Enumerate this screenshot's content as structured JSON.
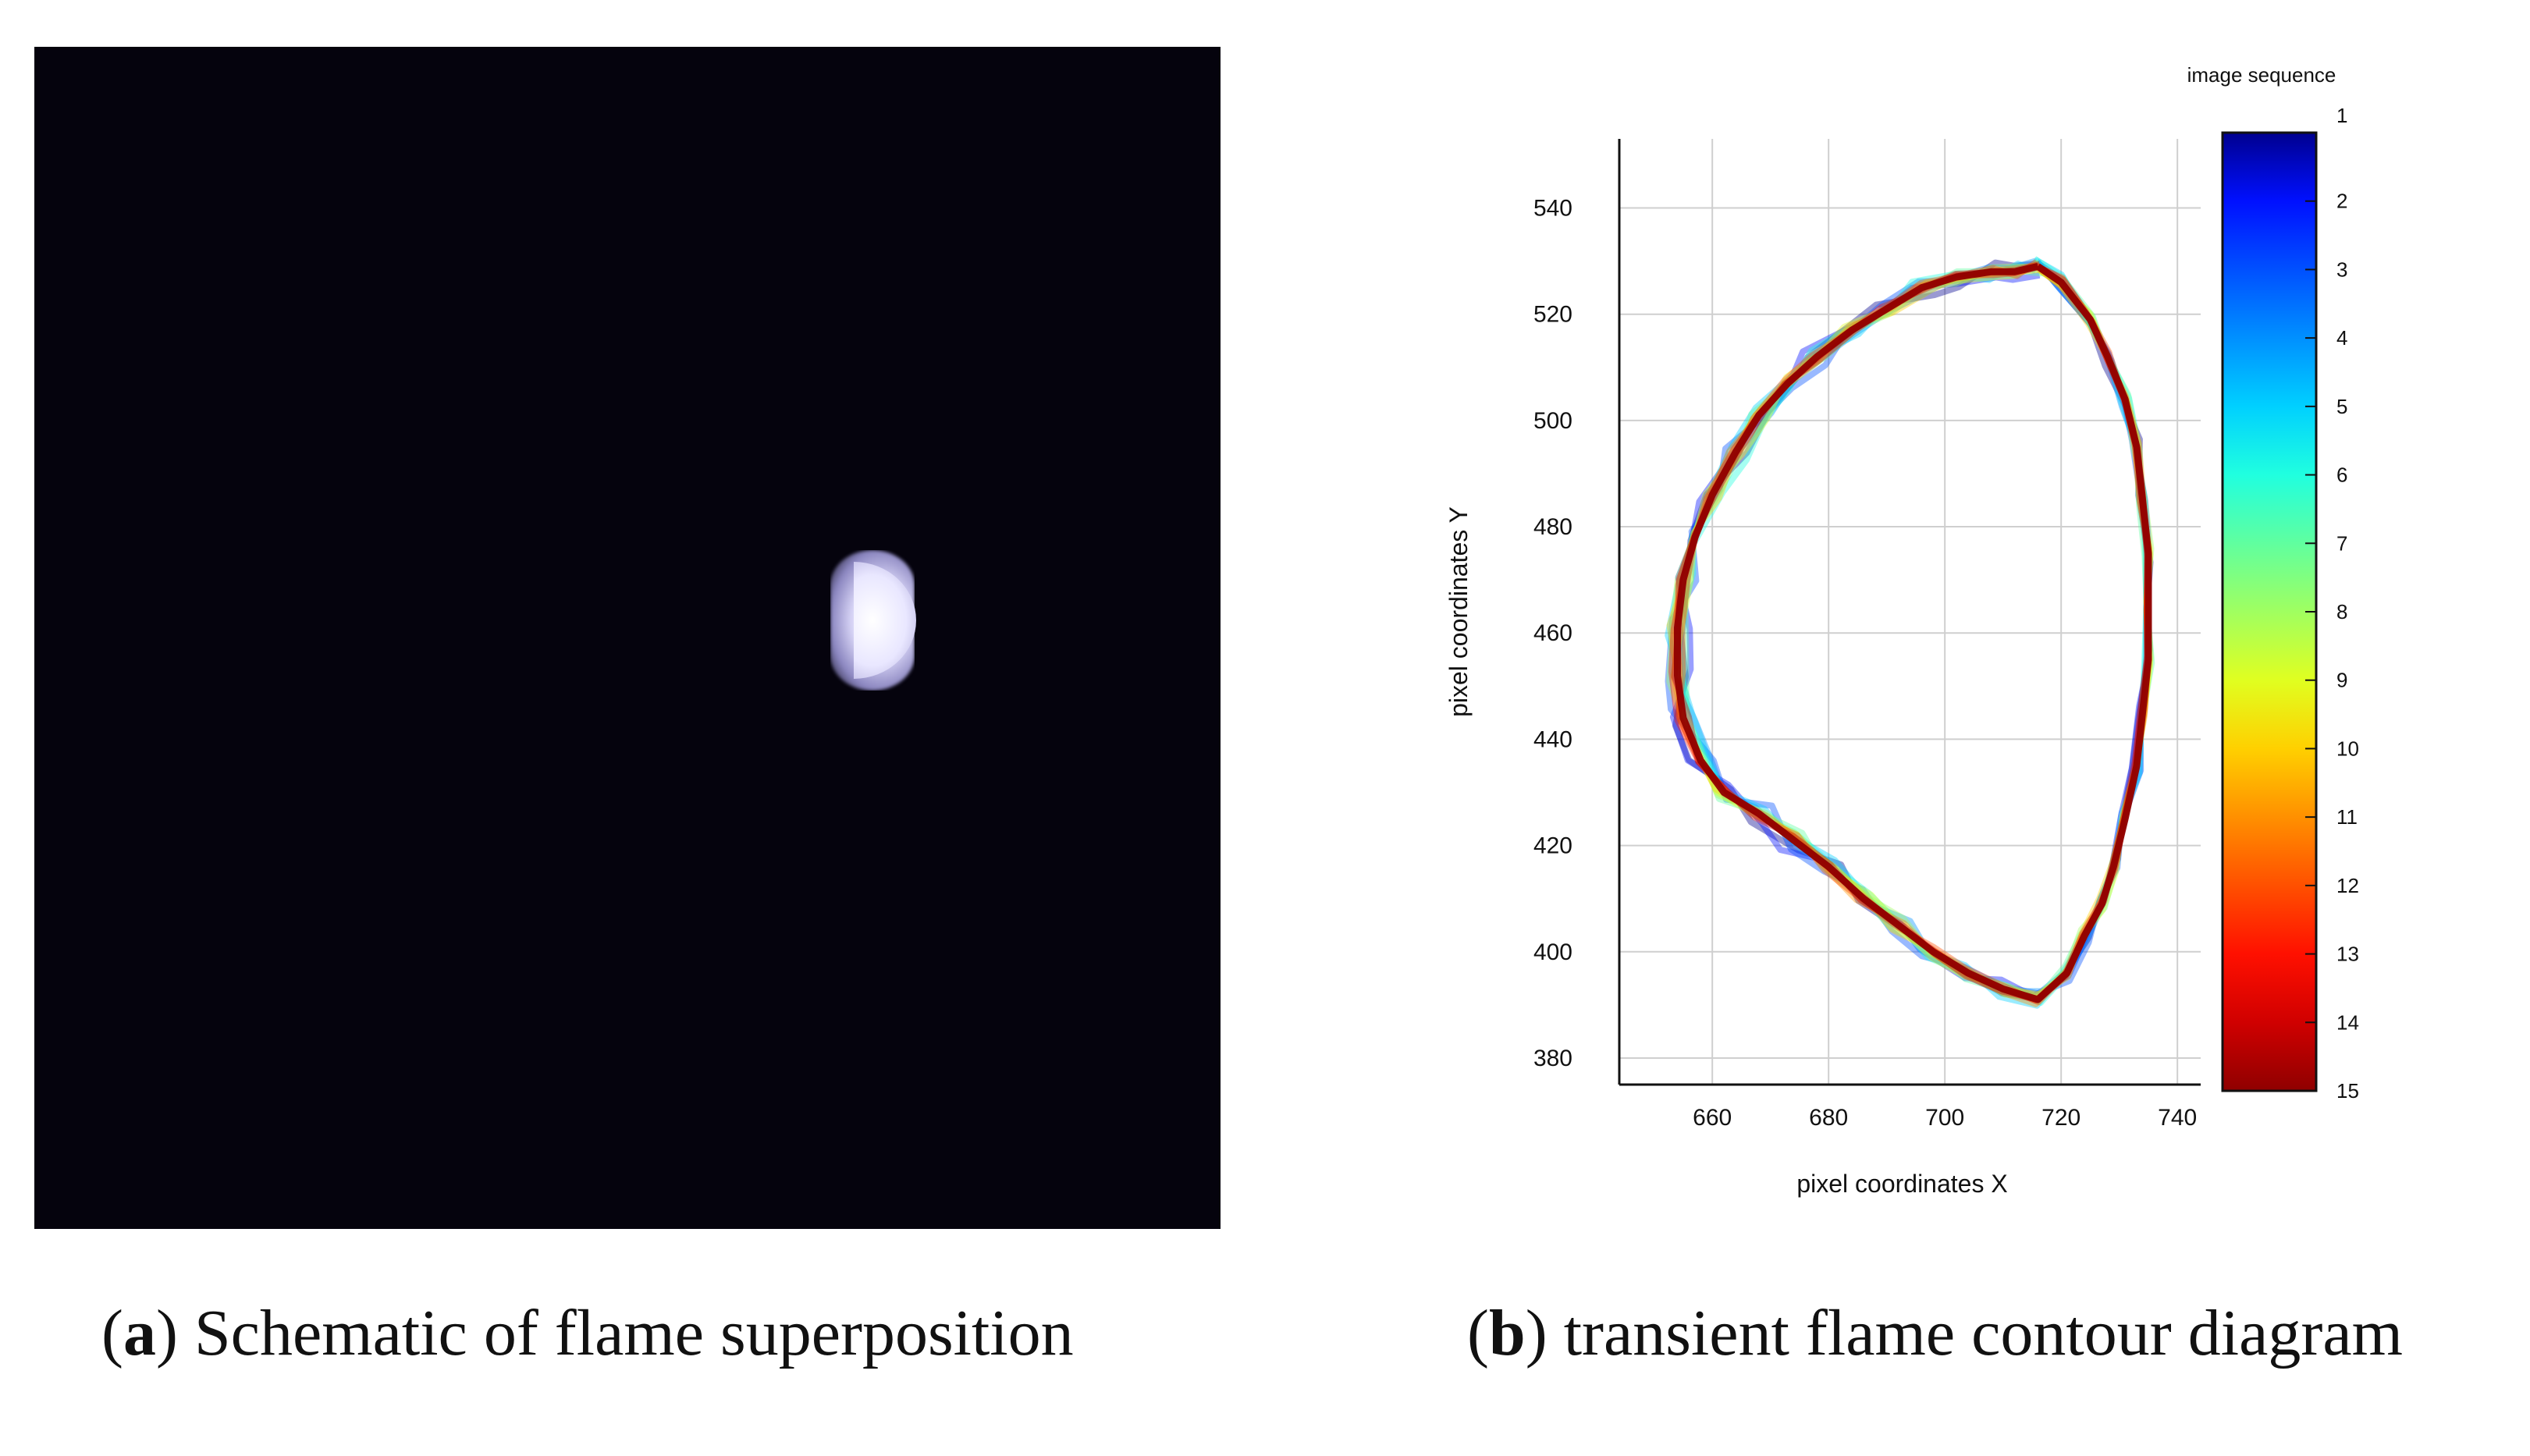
{
  "captions": {
    "a": {
      "letter": "a",
      "text": "Schematic of flame superposition"
    },
    "b": {
      "letter": "b",
      "text": "transient flame contour diagram"
    }
  },
  "chart_data": {
    "type": "line",
    "xlabel": "pixel coordinates X",
    "ylabel": "pixel coordinates Y",
    "xticks": [
      660,
      680,
      700,
      720,
      740
    ],
    "yticks": [
      380,
      400,
      420,
      440,
      460,
      480,
      500,
      520,
      540
    ],
    "xlim": [
      644,
      744
    ],
    "ylim": [
      375,
      553
    ],
    "grid": true,
    "colorbar": {
      "title": "image sequence",
      "ticks": [
        1,
        2,
        3,
        4,
        5,
        6,
        7,
        8,
        9,
        10,
        11,
        12,
        13,
        14,
        15
      ],
      "colormap": "jet"
    },
    "contour": {
      "x": [
        716,
        720,
        725,
        728,
        731,
        733,
        734,
        735,
        735,
        735,
        734,
        733,
        731,
        729,
        727,
        724,
        721,
        716,
        710,
        704,
        698,
        692,
        686,
        680,
        674,
        668,
        662,
        658,
        655,
        654,
        654,
        655,
        657,
        660,
        664,
        668,
        673,
        678,
        684,
        690,
        696,
        702,
        708,
        712,
        716
      ],
      "y": [
        529,
        526,
        519,
        512,
        504,
        495,
        485,
        475,
        465,
        455,
        445,
        435,
        425,
        416,
        409,
        403,
        396,
        391,
        393,
        396,
        400,
        405,
        410,
        416,
        421,
        426,
        430,
        436,
        444,
        452,
        461,
        470,
        478,
        486,
        494,
        501,
        507,
        512,
        517,
        521,
        525,
        527,
        528,
        528,
        529
      ]
    },
    "series_colors": [
      "#00008f",
      "#0010ff",
      "#0050ff",
      "#0090ff",
      "#00d0ff",
      "#20ffdf",
      "#60ff9f",
      "#a0ff60",
      "#e0ff20",
      "#ffd000",
      "#ff9000",
      "#ff5000",
      "#ff1000",
      "#d00000",
      "#8f0000"
    ]
  }
}
